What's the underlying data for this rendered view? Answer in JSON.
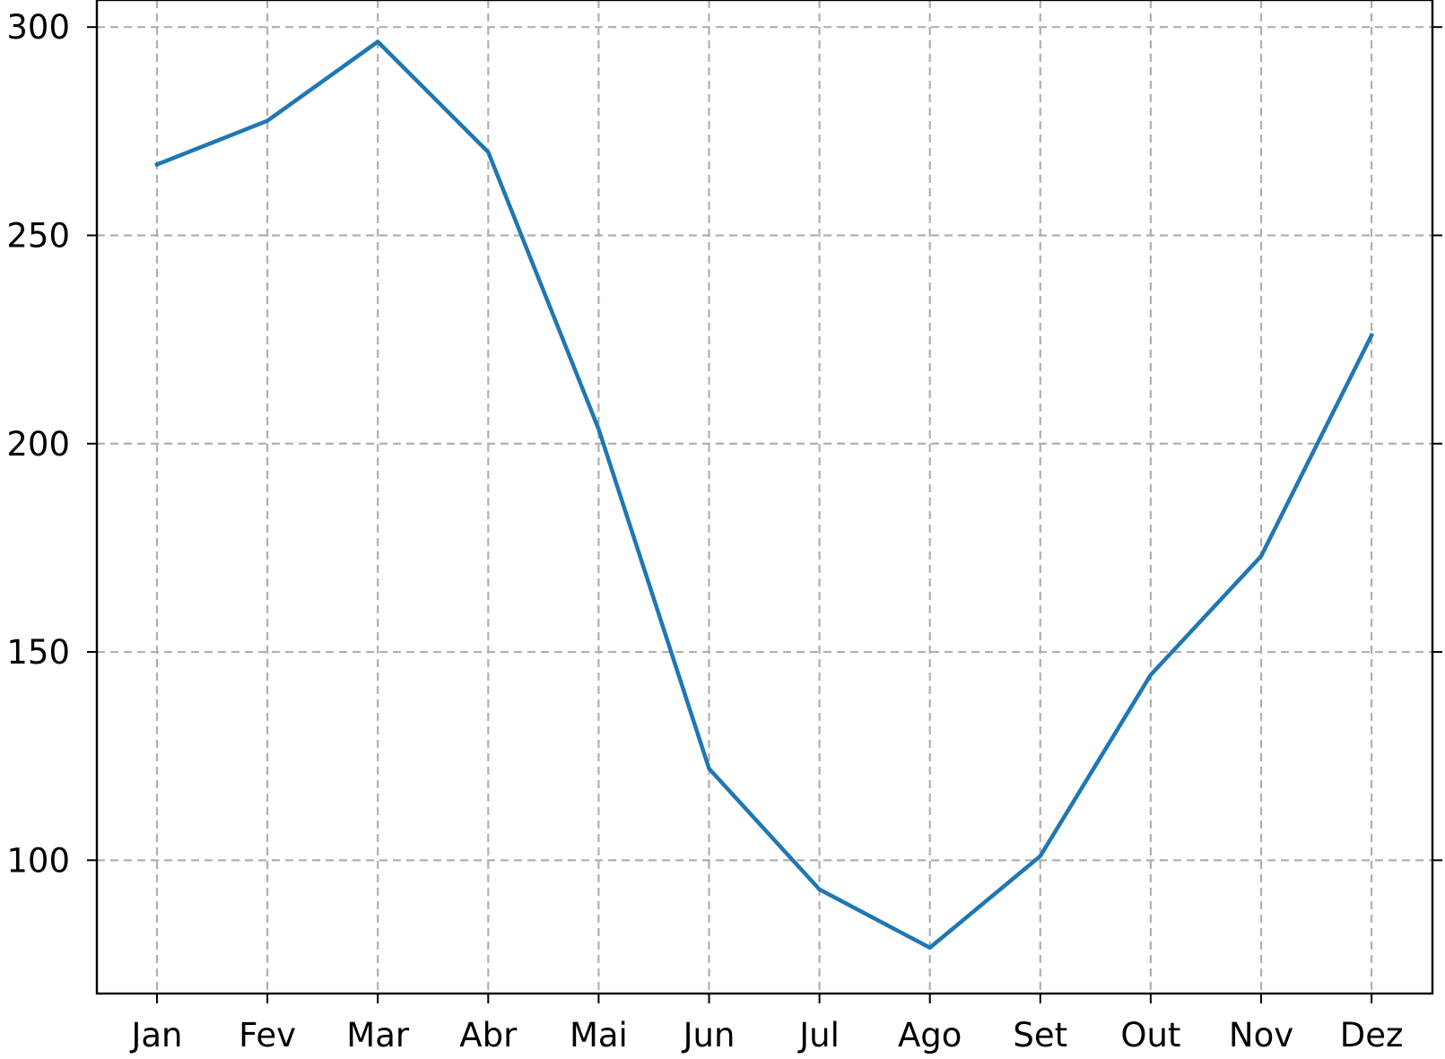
{
  "chart_data": {
    "type": "line",
    "categories": [
      "Jan",
      "Fev",
      "Mar",
      "Abr",
      "Mai",
      "Jun",
      "Jul",
      "Ago",
      "Set",
      "Out",
      "Nov",
      "Dez"
    ],
    "series": [
      {
        "values": [
          267,
          277.5,
          296.5,
          270,
          203.5,
          122,
          93,
          79,
          101,
          144.5,
          173,
          226
        ],
        "color": "#1f77b4"
      }
    ],
    "yticks": [
      100,
      150,
      200,
      250,
      300
    ],
    "ylim": [
      68,
      306.5
    ],
    "grid": true,
    "grid_color": "#b0b0b0",
    "title": "",
    "xlabel": "",
    "ylabel": ""
  }
}
